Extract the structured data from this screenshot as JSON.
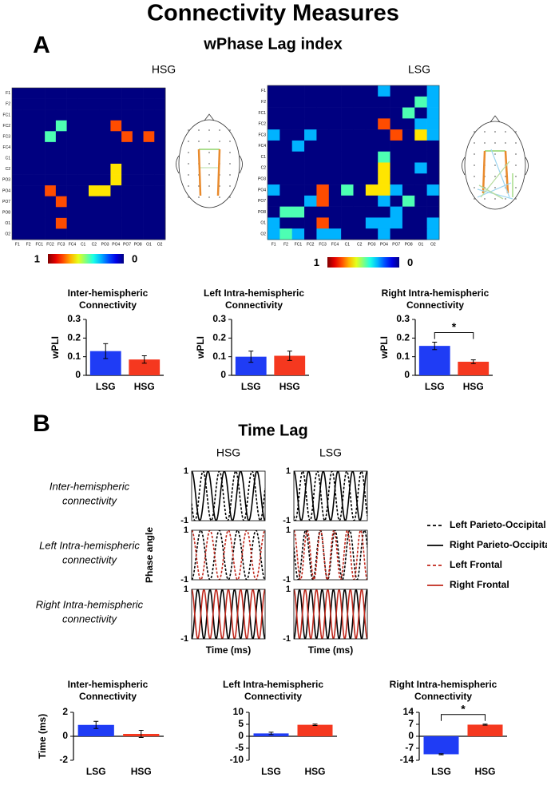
{
  "title": "Connectivity Measures",
  "panels": [
    {
      "label": "A",
      "title": "wPhase Lag index"
    },
    {
      "label": "B",
      "title": "Time Lag"
    }
  ],
  "chart_data": [
    {
      "type": "heatmap",
      "title": "HSG",
      "labels": [
        "F1",
        "F2",
        "FC1",
        "FC2",
        "FC3",
        "FC4",
        "C1",
        "C2",
        "PO3",
        "PO4",
        "PO7",
        "PO8",
        "O1",
        "O2"
      ],
      "values": [
        [
          0,
          0,
          0,
          0,
          0,
          0,
          0,
          0,
          0,
          0,
          0,
          0,
          0,
          0
        ],
        [
          0,
          0,
          0,
          0,
          0,
          0,
          0,
          0,
          0,
          0,
          0,
          0,
          0,
          0
        ],
        [
          0,
          0,
          0,
          0,
          0,
          0,
          0,
          0,
          0,
          0,
          0,
          0,
          0,
          0
        ],
        [
          0,
          0,
          0,
          0,
          0.45,
          0,
          0,
          0,
          0,
          0.8,
          0,
          0,
          0,
          0
        ],
        [
          0,
          0,
          0,
          0.45,
          0,
          0,
          0,
          0,
          0,
          0,
          0.8,
          0,
          0.8,
          0
        ],
        [
          0,
          0,
          0,
          0,
          0,
          0,
          0,
          0,
          0,
          0,
          0,
          0,
          0,
          0
        ],
        [
          0,
          0,
          0,
          0,
          0,
          0,
          0,
          0,
          0,
          0,
          0,
          0,
          0,
          0
        ],
        [
          0,
          0,
          0,
          0,
          0,
          0,
          0,
          0,
          0,
          0.65,
          0,
          0,
          0,
          0
        ],
        [
          0,
          0,
          0,
          0,
          0,
          0,
          0,
          0,
          0,
          0.65,
          0,
          0,
          0,
          0
        ],
        [
          0,
          0,
          0,
          0.8,
          0,
          0,
          0,
          0.65,
          0.65,
          0,
          0,
          0,
          0,
          0
        ],
        [
          0,
          0,
          0,
          0,
          0.8,
          0,
          0,
          0,
          0,
          0,
          0,
          0,
          0,
          0
        ],
        [
          0,
          0,
          0,
          0,
          0,
          0,
          0,
          0,
          0,
          0,
          0,
          0,
          0,
          0
        ],
        [
          0,
          0,
          0,
          0,
          0.8,
          0,
          0,
          0,
          0,
          0,
          0,
          0,
          0,
          0
        ],
        [
          0,
          0,
          0,
          0,
          0,
          0,
          0,
          0,
          0,
          0,
          0,
          0,
          0,
          0
        ]
      ],
      "colorbar": {
        "ticks": [
          1,
          0
        ]
      }
    },
    {
      "type": "heatmap",
      "title": "LSG",
      "labels": [
        "F1",
        "F2",
        "FC1",
        "FC2",
        "FC3",
        "FC4",
        "C1",
        "C2",
        "PO3",
        "PO4",
        "PO7",
        "PO8",
        "O1",
        "O2"
      ],
      "values": [
        [
          0,
          0,
          0,
          0,
          0,
          0,
          0,
          0,
          0,
          0.3,
          0,
          0,
          0,
          0.3
        ],
        [
          0,
          0,
          0,
          0,
          0,
          0,
          0,
          0,
          0,
          0,
          0,
          0,
          0.45,
          0.3
        ],
        [
          0,
          0,
          0,
          0,
          0,
          0,
          0,
          0,
          0,
          0,
          0,
          0.45,
          0,
          0.3
        ],
        [
          0,
          0,
          0,
          0,
          0,
          0,
          0,
          0,
          0,
          0.8,
          0,
          0,
          0.3,
          0.3
        ],
        [
          0.3,
          0,
          0,
          0.3,
          0,
          0,
          0,
          0,
          0,
          0,
          0.8,
          0,
          0.65,
          0.3
        ],
        [
          0,
          0,
          0.3,
          0,
          0,
          0,
          0,
          0,
          0,
          0,
          0,
          0,
          0,
          0
        ],
        [
          0,
          0,
          0,
          0,
          0,
          0,
          0,
          0,
          0,
          0.45,
          0,
          0,
          0,
          0
        ],
        [
          0,
          0,
          0,
          0,
          0,
          0,
          0,
          0,
          0,
          0.65,
          0,
          0,
          0.3,
          0
        ],
        [
          0,
          0,
          0,
          0,
          0,
          0,
          0,
          0,
          0,
          0.65,
          0,
          0,
          0,
          0
        ],
        [
          0.3,
          0,
          0,
          0,
          0.8,
          0,
          0.45,
          0,
          0.65,
          0.65,
          0.3,
          0,
          0,
          0.3
        ],
        [
          0,
          0,
          0,
          0.3,
          0.8,
          0,
          0,
          0,
          0,
          0.3,
          0,
          0.45,
          0,
          0
        ],
        [
          0,
          0.45,
          0.45,
          0,
          0,
          0,
          0,
          0,
          0,
          0,
          0.3,
          0,
          0,
          0
        ],
        [
          0.3,
          0,
          0,
          0,
          0.8,
          0,
          0,
          0,
          0.3,
          0.3,
          0.3,
          0,
          0,
          0.3
        ],
        [
          0.3,
          0.45,
          0.3,
          0,
          0.3,
          0.3,
          0,
          0,
          0,
          0.3,
          0,
          0,
          0,
          0.3
        ]
      ],
      "colorbar": {
        "ticks": [
          1,
          0
        ]
      }
    },
    {
      "type": "bar",
      "title_lines": [
        "Inter-hemispheric",
        "Connectivity"
      ],
      "ylabel": "wPLI",
      "categories": [
        "LSG",
        "HSG"
      ],
      "colors": [
        "#1f3cf5",
        "#f5381f"
      ],
      "values": [
        0.13,
        0.085
      ],
      "errors": [
        0.04,
        0.02
      ],
      "ylim": [
        0,
        0.3
      ],
      "yticks": [
        0,
        0.1,
        0.2,
        0.3
      ]
    },
    {
      "type": "bar",
      "title_lines": [
        "Left Intra-hemispheric",
        "Connectivity"
      ],
      "ylabel": "wPLI",
      "categories": [
        "LSG",
        "HSG"
      ],
      "colors": [
        "#1f3cf5",
        "#f5381f"
      ],
      "values": [
        0.1,
        0.105
      ],
      "errors": [
        0.03,
        0.025
      ],
      "ylim": [
        0,
        0.3
      ],
      "yticks": [
        0,
        0.1,
        0.2,
        0.3
      ]
    },
    {
      "type": "bar",
      "title_lines": [
        "Right Intra-hemispheric",
        "Connectivity"
      ],
      "ylabel": "wPLI",
      "categories": [
        "LSG",
        "HSG"
      ],
      "colors": [
        "#1f3cf5",
        "#f5381f"
      ],
      "values": [
        0.158,
        0.073
      ],
      "errors": [
        0.02,
        0.01
      ],
      "ylim": [
        0,
        0.3
      ],
      "yticks": [
        0,
        0.1,
        0.2,
        0.3
      ],
      "significance": "*"
    },
    {
      "type": "waves",
      "columns": [
        "HSG",
        "LSG"
      ],
      "rows": [
        [
          "Inter-hemispheric",
          "connectivity"
        ],
        [
          "Left Intra-hemispheric",
          "connectivity"
        ],
        [
          "Right Intra-hemispheric",
          "connectivity"
        ]
      ],
      "ylabel": "Phase angle",
      "xlabel": "Time (ms)",
      "ylim": [
        -1,
        1
      ],
      "yticks": [
        1,
        -1
      ],
      "series": [
        {
          "name": "Left Parieto-Occipital",
          "color": "#000000",
          "dash": true
        },
        {
          "name": "Right Parieto-Occipital",
          "color": "#000000",
          "dash": false
        },
        {
          "name": "Left Frontal",
          "color": "#c0281c",
          "dash": true
        },
        {
          "name": "Right Frontal",
          "color": "#c0281c",
          "dash": false
        }
      ],
      "panels": [
        [
          {
            "lines": [
              {
                "series": 0,
                "cycles": 4.5,
                "phase": 0.3
              },
              {
                "series": 1,
                "cycles": 4.5,
                "phase": 0
              }
            ]
          },
          {
            "lines": [
              {
                "series": 0,
                "cycles": 5,
                "phase": 0.4
              },
              {
                "series": 1,
                "cycles": 5,
                "phase": 0
              }
            ]
          }
        ],
        [
          {
            "lines": [
              {
                "series": 0,
                "cycles": 4,
                "phase": 0.5
              },
              {
                "series": 2,
                "cycles": 4,
                "phase": 0
              }
            ]
          },
          {
            "lines": [
              {
                "series": 0,
                "cycles": 5,
                "phase": 0.2
              },
              {
                "series": 2,
                "cycles": 5.5,
                "phase": 0
              }
            ]
          }
        ],
        [
          {
            "lines": [
              {
                "series": 1,
                "cycles": 6,
                "phase": 0.5
              },
              {
                "series": 3,
                "cycles": 6,
                "phase": 0
              }
            ]
          },
          {
            "lines": [
              {
                "series": 1,
                "cycles": 6.5,
                "phase": 0.5
              },
              {
                "series": 3,
                "cycles": 6.5,
                "phase": 0
              }
            ]
          }
        ]
      ]
    },
    {
      "type": "bar",
      "title_lines": [
        "Inter-hemispheric",
        "Connectivity"
      ],
      "ylabel": "Time (ms)",
      "categories": [
        "LSG",
        "HSG"
      ],
      "colors": [
        "#1f3cf5",
        "#f5381f"
      ],
      "values": [
        0.95,
        0.2
      ],
      "errors": [
        0.3,
        0.3
      ],
      "ylim": [
        -2,
        2
      ],
      "yticks": [
        -2,
        0,
        2
      ]
    },
    {
      "type": "bar",
      "title_lines": [
        "Left Intra-hemispheric",
        "Connectivity"
      ],
      "categories": [
        "LSG",
        "HSG"
      ],
      "colors": [
        "#1f3cf5",
        "#f5381f"
      ],
      "values": [
        1.2,
        4.8
      ],
      "errors": [
        0.5,
        0.3
      ],
      "ylim": [
        -10,
        10
      ],
      "yticks": [
        -10,
        -5,
        0,
        5,
        10
      ]
    },
    {
      "type": "bar",
      "title_lines": [
        "Right Intra-hemispheric",
        "Connectivity"
      ],
      "categories": [
        "LSG",
        "HSG"
      ],
      "colors": [
        "#1f3cf5",
        "#f5381f"
      ],
      "values": [
        -10.5,
        6.8
      ],
      "errors": [
        0.3,
        0.3
      ],
      "ylim": [
        -14,
        14
      ],
      "yticks": [
        -14,
        -7,
        0,
        7,
        14
      ],
      "significance": "*"
    }
  ]
}
